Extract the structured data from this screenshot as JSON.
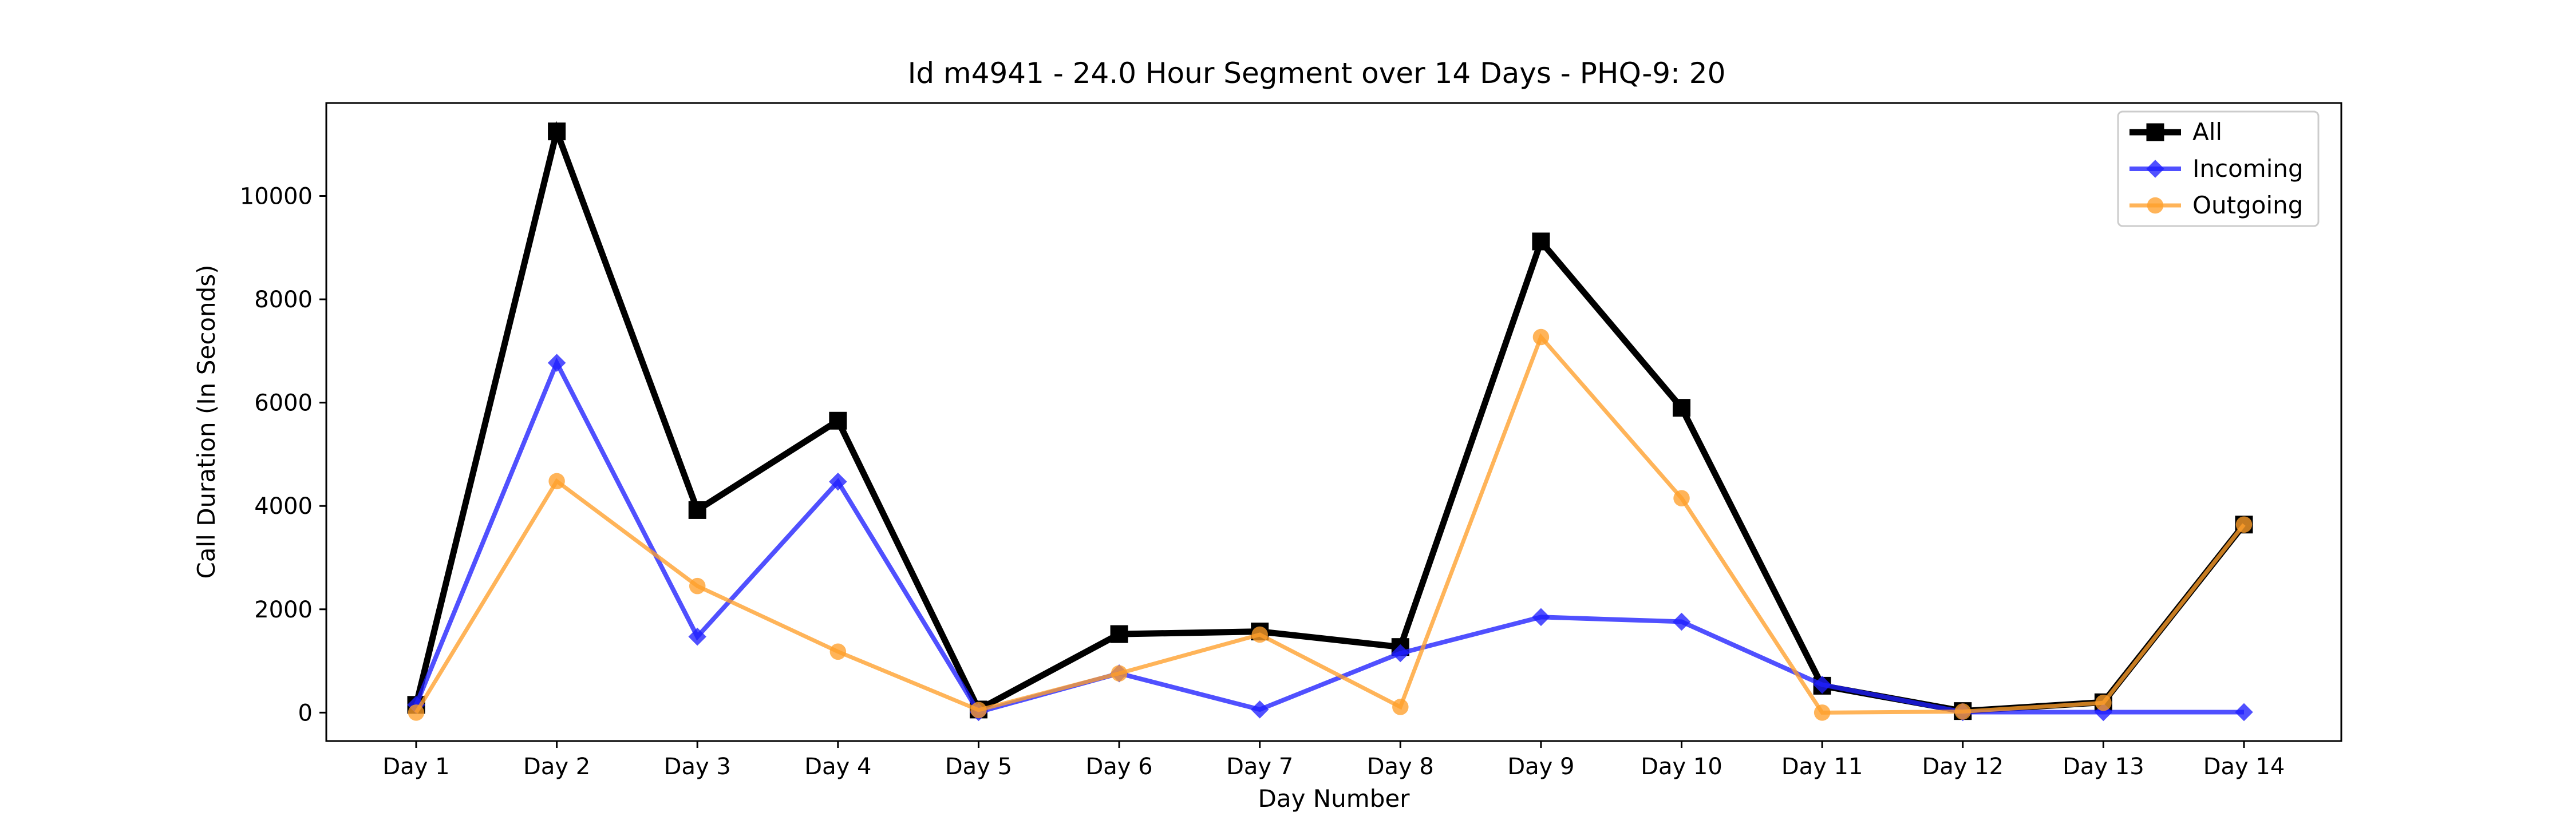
{
  "chart_data": {
    "type": "line",
    "title": "Id m4941 - 24.0 Hour Segment over 14 Days - PHQ-9: 20",
    "xlabel": "Day Number",
    "ylabel": "Call Duration (In Seconds)",
    "categories": [
      "Day 1",
      "Day 2",
      "Day 3",
      "Day 4",
      "Day 5",
      "Day 6",
      "Day 7",
      "Day 8",
      "Day 9",
      "Day 10",
      "Day 11",
      "Day 12",
      "Day 13",
      "Day 14"
    ],
    "ylim": [
      -550,
      11800
    ],
    "yticks": [
      0,
      2000,
      4000,
      6000,
      8000,
      10000
    ],
    "grid": false,
    "legend_position": "top-right",
    "series": [
      {
        "name": "All",
        "color": "#000000",
        "marker": "square",
        "values": [
          150,
          11250,
          3920,
          5650,
          60,
          1520,
          1570,
          1270,
          9120,
          5900,
          520,
          30,
          200,
          3640
        ]
      },
      {
        "name": "Incoming",
        "color": "#1f1fff",
        "marker": "diamond",
        "values": [
          150,
          6770,
          1470,
          4470,
          10,
          760,
          60,
          1150,
          1850,
          1760,
          540,
          10,
          10,
          10
        ]
      },
      {
        "name": "Outgoing",
        "color": "#ff9f2a",
        "marker": "circle",
        "values": [
          0,
          4480,
          2450,
          1180,
          50,
          760,
          1510,
          110,
          7270,
          4150,
          0,
          20,
          190,
          3640
        ]
      }
    ]
  }
}
